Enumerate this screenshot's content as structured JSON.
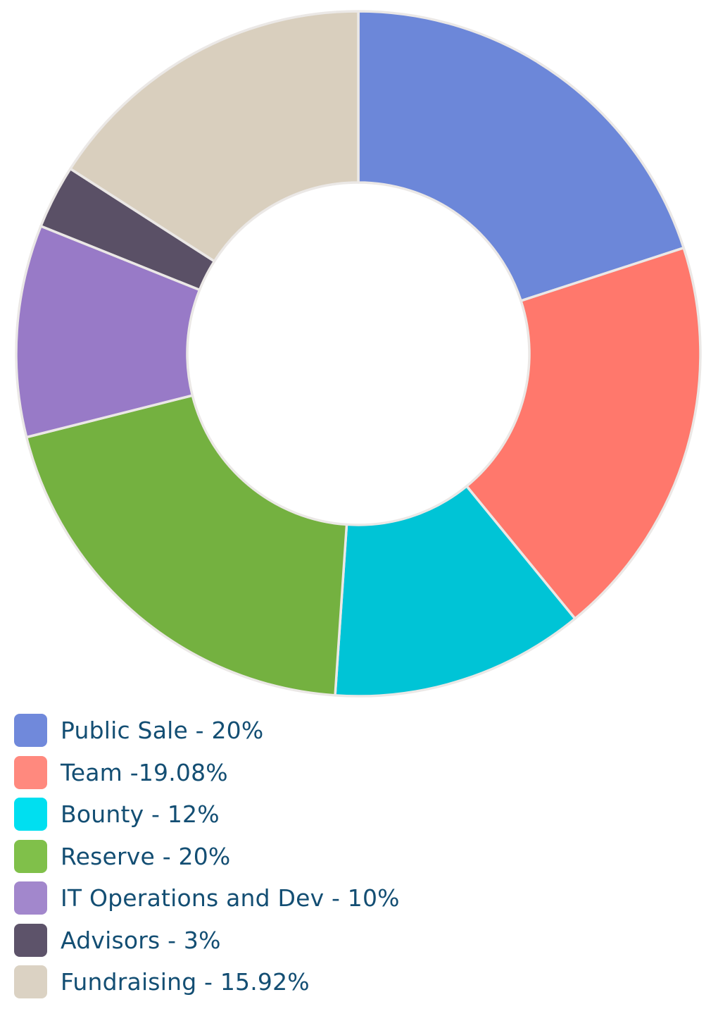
{
  "chart_data": {
    "type": "pie",
    "donut": true,
    "start_angle": "12 o'clock",
    "direction": "clockwise",
    "legend_position": "bottom-left",
    "slices": [
      {
        "label": "Public Sale - 20%",
        "value": 20,
        "color": "#6c87d9",
        "legend_color": "#7089db"
      },
      {
        "label": "Team -19.08%",
        "value": 19.08,
        "color": "#ff786c",
        "legend_color": "#ff897e"
      },
      {
        "label": "Bounty - 12%",
        "value": 12,
        "color": "#00c4d6",
        "legend_color": "#00dff0"
      },
      {
        "label": "Reserve - 20%",
        "value": 20,
        "color": "#74b140",
        "legend_color": "#80c04a"
      },
      {
        "label": "IT Operations and Dev - 10%",
        "value": 10,
        "color": "#987ac7",
        "legend_color": "#a287cc"
      },
      {
        "label": "Advisors - 3%",
        "value": 3,
        "color": "#5a5066",
        "legend_color": "#5d536a"
      },
      {
        "label": "Fundraising - 15.92%",
        "value": 15.92,
        "color": "#d9cfbe",
        "legend_color": "#dbd2c3"
      }
    ]
  }
}
